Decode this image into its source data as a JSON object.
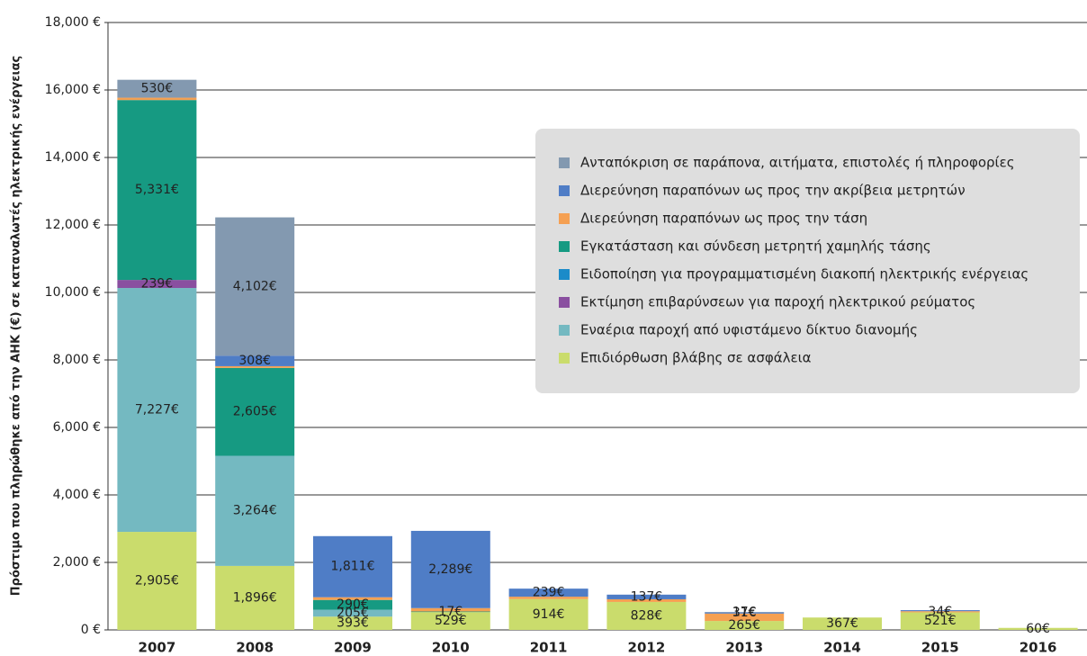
{
  "chart_data": {
    "type": "stacked_bar",
    "y_label": "Πρόστιμο που πληρώθηκε από την ΑΗΚ (€) σε καταναλωτές ηλεκτρικής ενέργειας",
    "categories": [
      "2007",
      "2008",
      "2009",
      "2010",
      "2011",
      "2012",
      "2013",
      "2014",
      "2015",
      "2016"
    ],
    "ylim": [
      0,
      18000
    ],
    "yticks": [
      {
        "value": 0,
        "label": "0 €"
      },
      {
        "value": 2000,
        "label": "2,000 €"
      },
      {
        "value": 4000,
        "label": "4,000 €"
      },
      {
        "value": 6000,
        "label": "6,000 €"
      },
      {
        "value": 8000,
        "label": "8,000 €"
      },
      {
        "value": 10000,
        "label": "10,000 €"
      },
      {
        "value": 12000,
        "label": "12,000 €"
      },
      {
        "value": 14000,
        "label": "14,000 €"
      },
      {
        "value": 16000,
        "label": "16,000 €"
      },
      {
        "value": 18000,
        "label": "18,000 €"
      }
    ],
    "grid": true,
    "legend": "upper right",
    "series": [
      {
        "name": "Επιδιόρθωση βλάβης σε ασφάλεια",
        "color": "#cadc6c",
        "values": [
          2905,
          1896,
          393,
          529,
          914,
          828,
          265,
          367,
          521,
          60
        ],
        "value_labels": [
          "2,905€",
          "1,896€",
          "393€",
          "529€",
          "914€",
          "828€",
          "265€",
          "367€",
          "521€",
          "60€"
        ]
      },
      {
        "name": "Εναέρια παροχή από υφιστάμενο δίκτυο διανομής",
        "color": "#74b9c1",
        "values": [
          7227,
          3264,
          205,
          0,
          0,
          0,
          0,
          0,
          0,
          0
        ],
        "value_labels": [
          "7,227€",
          "3,264€",
          "205€",
          null,
          null,
          null,
          null,
          null,
          null,
          null
        ]
      },
      {
        "name": "Εκτίμηση επιβαρύνσεων για παροχή ηλεκτρικού ρεύματος",
        "color": "#8a4fa0",
        "values": [
          239,
          0,
          0,
          0,
          0,
          0,
          0,
          0,
          0,
          0
        ],
        "value_labels": [
          "239€",
          null,
          null,
          null,
          null,
          null,
          null,
          null,
          null,
          null
        ]
      },
      {
        "name": "Ειδοποίηση για προγραμματισμένη διακοπή ηλεκτρικής ενέργειας",
        "color": "#1b8bc9",
        "values": [
          0,
          0,
          0,
          0,
          0,
          0,
          0,
          0,
          0,
          0
        ],
        "value_labels": [
          null,
          null,
          null,
          null,
          null,
          null,
          null,
          null,
          null,
          null
        ]
      },
      {
        "name": "Εγκατάσταση και σύνδεση μετρητή χαμηλής τάσης",
        "color": "#169a82",
        "values": [
          5331,
          2605,
          290,
          17,
          0,
          0,
          0,
          0,
          0,
          0
        ],
        "value_labels": [
          "5,331€",
          "2,605€",
          "290€",
          "17€",
          null,
          null,
          null,
          null,
          null,
          null
        ]
      },
      {
        "name": "Διερεύνηση παραπόνων ως προς την τάση",
        "color": "#f5a052",
        "values": [
          70,
          50,
          80,
          100,
          70,
          80,
          220,
          0,
          34,
          0
        ],
        "value_labels": [
          null,
          null,
          null,
          null,
          null,
          null,
          null,
          null,
          "34€",
          null
        ]
      },
      {
        "name": "Διερεύνηση παραπόνων ως προς την ακρίβεια μετρητών",
        "color": "#4f7dc6",
        "values": [
          0,
          308,
          1811,
          2289,
          239,
          137,
          31,
          0,
          30,
          0
        ],
        "value_labels": [
          null,
          "308€",
          "1,811€",
          "2,289€",
          "239€",
          "137€",
          "31€",
          null,
          null,
          null
        ]
      },
      {
        "name": "Ανταπόκριση σε παράπονα, αιτήματα, επιστολές ή πληροφορίες",
        "color": "#8399b0",
        "values": [
          530,
          4102,
          0,
          0,
          0,
          0,
          17,
          0,
          0,
          0
        ],
        "value_labels": [
          "530€",
          "4,102€",
          null,
          null,
          null,
          null,
          "17€",
          null,
          null,
          null
        ]
      }
    ]
  }
}
